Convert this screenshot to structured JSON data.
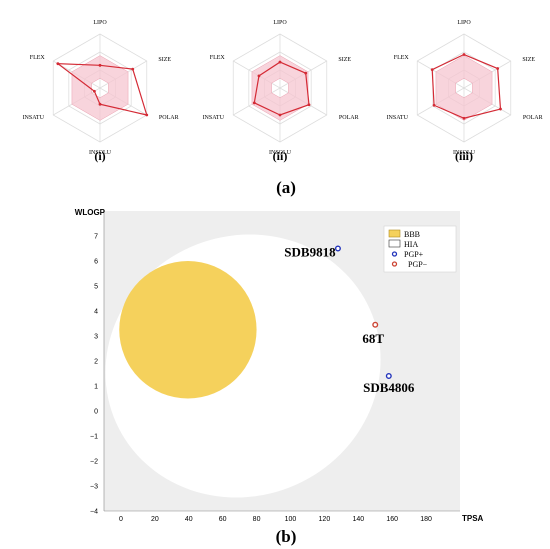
{
  "figure": {
    "label_a": "(a)",
    "label_b": "(b)"
  },
  "chart_data": [
    {
      "type": "radar",
      "axes": [
        "LIPO",
        "SIZE",
        "POLAR",
        "INSOLU",
        "INSATU",
        "FLEX"
      ],
      "range": [
        0,
        1
      ],
      "optimal_region": [
        0.6,
        0.6,
        0.6,
        0.6,
        0.6,
        0.6
      ],
      "charts": [
        {
          "caption": "(i)",
          "values": [
            0.42,
            0.7,
            1.0,
            0.3,
            0.12,
            0.9
          ]
        },
        {
          "caption": "(ii)",
          "values": [
            0.48,
            0.55,
            0.62,
            0.5,
            0.55,
            0.45
          ]
        },
        {
          "caption": "(iii)",
          "values": [
            0.62,
            0.72,
            0.78,
            0.56,
            0.64,
            0.68
          ]
        }
      ],
      "colors": {
        "line": "#d42a35",
        "region": "#f6c6d0",
        "grid": "#dddddd"
      }
    },
    {
      "type": "scatter",
      "xlabel": "TPSA",
      "ylabel": "WLOGP",
      "xlim": [
        -10,
        200
      ],
      "ylim": [
        -4,
        8
      ],
      "xticks": [
        0,
        20,
        40,
        60,
        80,
        100,
        120,
        140,
        160,
        180
      ],
      "yticks": [
        -4,
        -3,
        -2,
        -1,
        0,
        1,
        2,
        3,
        4,
        5,
        6,
        7
      ],
      "legend": [
        "BBB",
        "HIA",
        "PGP+",
        "PGP−"
      ],
      "regions": {
        "BBB": {
          "cx": 39.5,
          "cy": 3.25,
          "rx": 40.5,
          "ry": 2.75,
          "color": "#f5d15c"
        },
        "HIA": {
          "cx": 72,
          "cy": 1.8,
          "rx": 82,
          "ry": 5.2,
          "rotation": -24,
          "color": "#ffffff"
        }
      },
      "points": [
        {
          "label": "SDB9818",
          "x": 128,
          "y": 6.5,
          "type": "PGP+"
        },
        {
          "label": "68T",
          "x": 150,
          "y": 3.45,
          "type": "PGP−"
        },
        {
          "label": "SDB4806",
          "x": 158,
          "y": 1.4,
          "type": "PGP+"
        }
      ],
      "colors": {
        "background": "#eeeeee",
        "pgp_plus": "#2233bb",
        "pgp_minus": "#cc4433"
      }
    }
  ]
}
